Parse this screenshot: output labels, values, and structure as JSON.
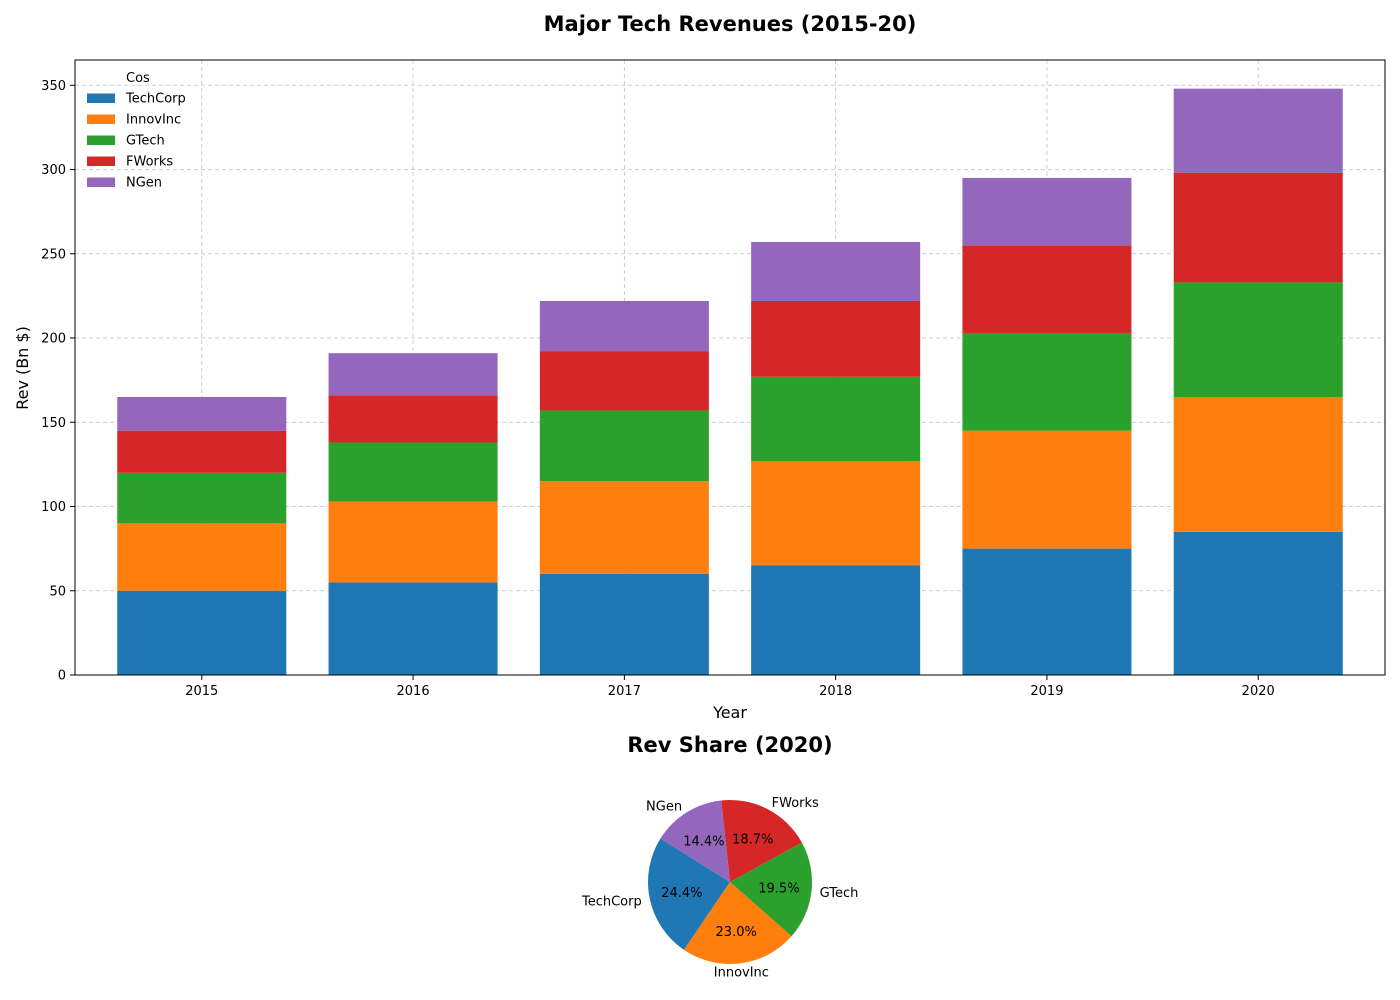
{
  "chart_data": [
    {
      "type": "bar",
      "stacked": true,
      "title": "Major Tech Revenues (2015-20)",
      "xlabel": "Year",
      "ylabel": "Rev (Bn $)",
      "categories": [
        "2015",
        "2016",
        "2017",
        "2018",
        "2019",
        "2020"
      ],
      "ylim": [
        0,
        365
      ],
      "yticks": [
        0,
        50,
        100,
        150,
        200,
        250,
        300,
        350
      ],
      "grid": true,
      "legend": {
        "title": "Cos",
        "placement": "top-left"
      },
      "series": [
        {
          "name": "TechCorp",
          "color": "#1f77b4",
          "values": [
            50,
            55,
            60,
            65,
            75,
            85
          ]
        },
        {
          "name": "InnovInc",
          "color": "#ff7f0e",
          "values": [
            40,
            48,
            55,
            62,
            70,
            80
          ]
        },
        {
          "name": "GTech",
          "color": "#2ca02c",
          "values": [
            30,
            35,
            42,
            50,
            58,
            68
          ]
        },
        {
          "name": "FWorks",
          "color": "#d62728",
          "values": [
            25,
            28,
            35,
            45,
            52,
            65
          ]
        },
        {
          "name": "NGen",
          "color": "#9467bd",
          "values": [
            20,
            25,
            30,
            35,
            40,
            50
          ]
        }
      ]
    },
    {
      "type": "pie",
      "title": "Rev Share (2020)",
      "slices": [
        {
          "label": "TechCorp",
          "value": 24.4,
          "pct_text": "24.4%",
          "color": "#1f77b4"
        },
        {
          "label": "InnovInc",
          "value": 23.0,
          "pct_text": "23.0%",
          "color": "#ff7f0e"
        },
        {
          "label": "GTech",
          "value": 19.5,
          "pct_text": "19.5%",
          "color": "#2ca02c"
        },
        {
          "label": "FWorks",
          "value": 18.7,
          "pct_text": "18.7%",
          "color": "#d62728"
        },
        {
          "label": "NGen",
          "value": 14.4,
          "pct_text": "14.4%",
          "color": "#9467bd"
        }
      ]
    }
  ]
}
